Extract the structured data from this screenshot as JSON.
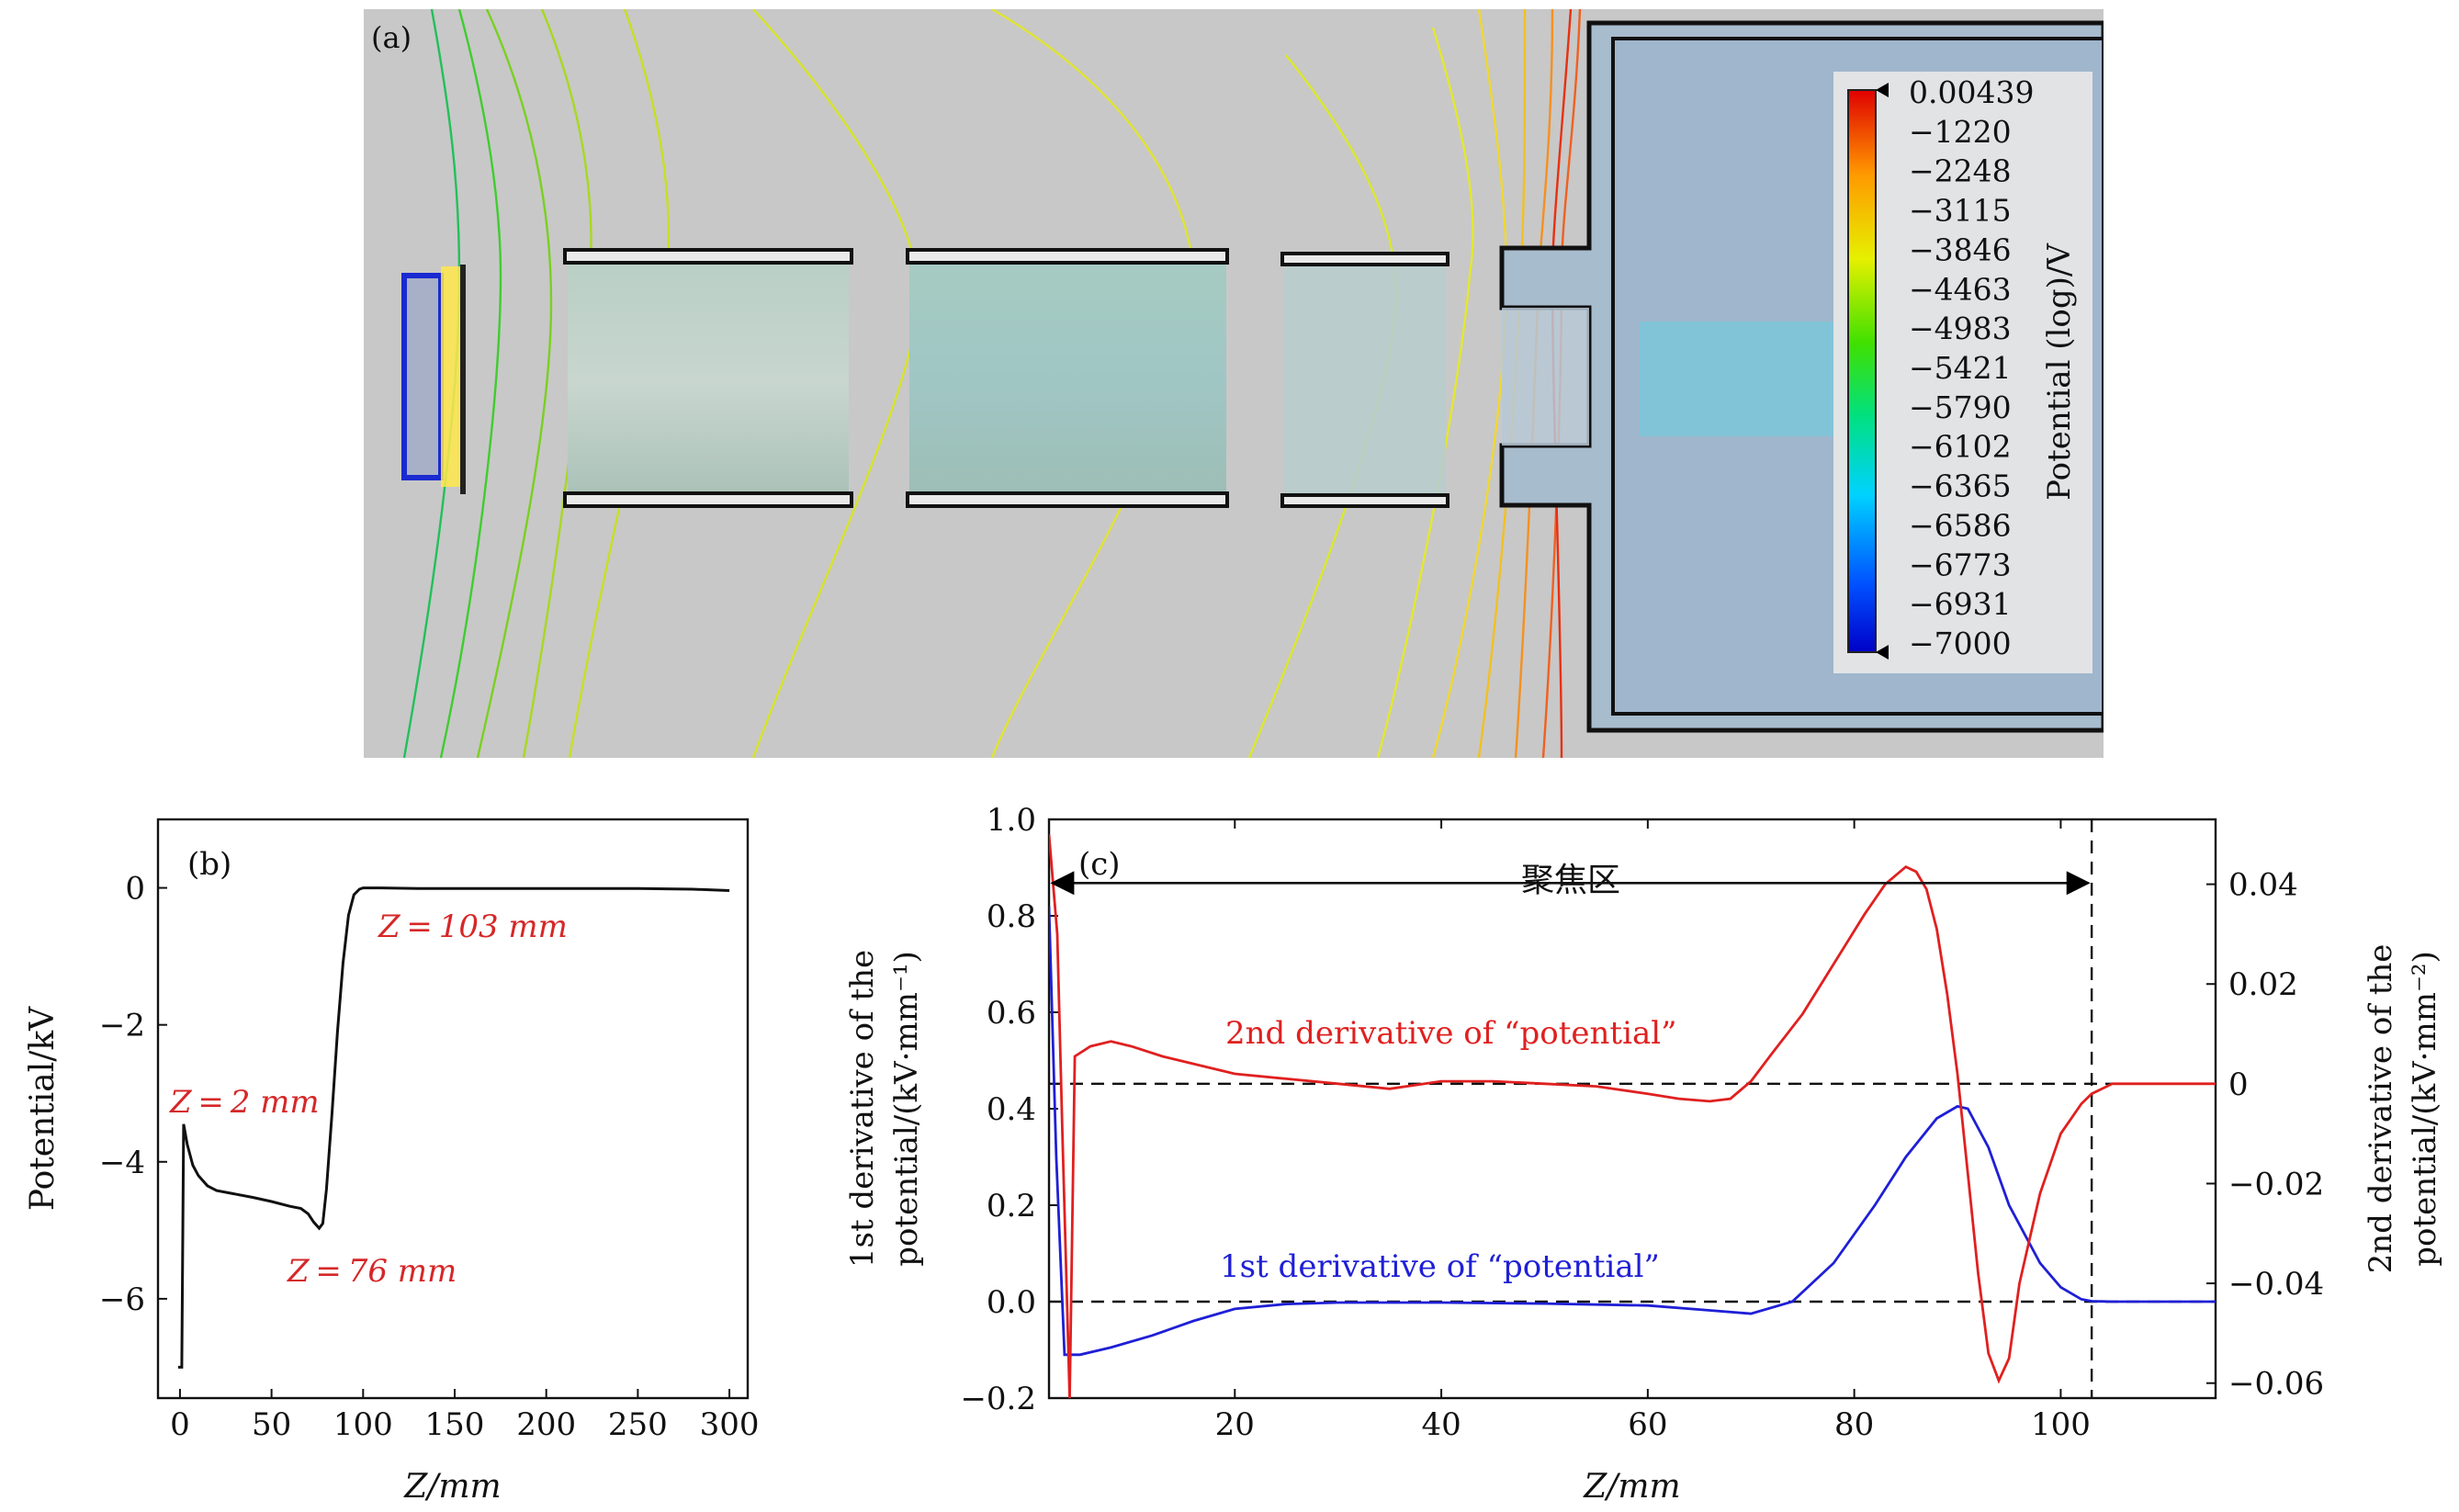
{
  "panel_a": {
    "label": "(a)",
    "colorbar_title": "Potential (log)/V",
    "colorbar_ticks": [
      "0.00439",
      "−1220",
      "−2248",
      "−3115",
      "−3846",
      "−4463",
      "−4983",
      "−5421",
      "−5790",
      "−6102",
      "−6365",
      "−6586",
      "−6773",
      "−6931",
      "−7000"
    ],
    "colors": {
      "background": "#c8c8c8",
      "collector": "#9db4c8",
      "electrode_fill": "#aec8bf"
    }
  },
  "panel_b": {
    "label": "(b)",
    "xlabel": "Z/mm",
    "ylabel": "Potential/kV",
    "annotations": [
      "Z = 103 mm",
      "Z = 2 mm",
      "Z = 76 mm"
    ],
    "annotation_color": "#d62728"
  },
  "panel_c": {
    "label": "(c)",
    "xlabel": "Z/mm",
    "ylabel_left_line1": "1st derivative of the",
    "ylabel_left_line2": "potential/(kV·mm⁻¹)",
    "ylabel_right_line1": "2nd derivative of the",
    "ylabel_right_line2": "potential/(kV·mm⁻²)",
    "region_label": "聚焦区",
    "label_2nd": "2nd derivative of “potential”",
    "label_1st": "1st derivative of “potential”",
    "colors": {
      "first": "#1f1fd6",
      "second": "#e02020"
    }
  },
  "chart_data": [
    {
      "type": "line",
      "panel": "b",
      "xlabel": "Z/mm",
      "ylabel": "Potential/kV",
      "xlim": [
        -12,
        310
      ],
      "ylim": [
        -7.45,
        1.0
      ],
      "xticks": [
        0,
        50,
        100,
        150,
        200,
        250,
        300
      ],
      "yticks": [
        0,
        -2,
        -4,
        -6
      ],
      "series": [
        {
          "color": "#000000",
          "x": [
            -1,
            1,
            2,
            4,
            7,
            10,
            15,
            20,
            30,
            40,
            50,
            60,
            66,
            70,
            73,
            76,
            78,
            80,
            83,
            86,
            89,
            92,
            95,
            98,
            100,
            103,
            110,
            130,
            150,
            200,
            250,
            280,
            300
          ],
          "y": [
            -7.0,
            -7.0,
            -3.45,
            -3.75,
            -4.05,
            -4.2,
            -4.35,
            -4.42,
            -4.47,
            -4.52,
            -4.58,
            -4.65,
            -4.68,
            -4.76,
            -4.88,
            -4.97,
            -4.9,
            -4.4,
            -3.3,
            -2.1,
            -1.1,
            -0.4,
            -0.1,
            -0.02,
            0.0,
            0.0,
            0.0,
            -0.01,
            -0.01,
            -0.01,
            -0.01,
            -0.02,
            -0.04
          ]
        }
      ]
    },
    {
      "type": "line",
      "panel": "c",
      "xlabel": "Z/mm",
      "xlim": [
        2,
        115
      ],
      "ylim_left": [
        -0.2,
        1.0
      ],
      "ylim_right": [
        -0.063,
        0.053
      ],
      "xticks": [
        20,
        40,
        60,
        80,
        100
      ],
      "yticks_left": [
        -0.2,
        0.0,
        0.2,
        0.4,
        0.6,
        0.8,
        1.0
      ],
      "yticks_right": [
        -0.06,
        -0.04,
        -0.02,
        0,
        0.02,
        0.04
      ],
      "hlines": [
        {
          "axis": "left",
          "y": 0.0
        },
        {
          "axis": "right",
          "y": 0.0
        }
      ],
      "vline_x": 103,
      "region": [
        2,
        103
      ],
      "series": [
        {
          "name": "1st derivative of “potential”",
          "axis": "left",
          "color": "#1f1fd6",
          "x": [
            2,
            2.7,
            3.5,
            5,
            8,
            12,
            16,
            20,
            25,
            30,
            40,
            50,
            60,
            66,
            70,
            74,
            78,
            82,
            85,
            88,
            90,
            91,
            93,
            95,
            98,
            100,
            102,
            103,
            105,
            110,
            115
          ],
          "y": [
            0.82,
            0.3,
            -0.11,
            -0.11,
            -0.095,
            -0.07,
            -0.04,
            -0.015,
            -0.005,
            -0.002,
            -0.002,
            -0.004,
            -0.008,
            -0.018,
            -0.025,
            0.0,
            0.08,
            0.2,
            0.3,
            0.38,
            0.405,
            0.4,
            0.32,
            0.2,
            0.08,
            0.03,
            0.005,
            0.001,
            0.0,
            0.0,
            0.0
          ]
        },
        {
          "name": "2nd derivative of “potential”",
          "axis": "right",
          "color": "#e02020",
          "x": [
            2,
            2.8,
            3.3,
            4,
            4.5,
            6,
            8,
            10,
            13,
            16,
            20,
            25,
            30,
            35,
            40,
            45,
            50,
            55,
            60,
            63,
            66,
            68,
            70,
            72,
            75,
            78,
            81,
            83,
            85,
            86,
            87,
            88,
            89,
            90,
            91,
            92,
            93,
            94,
            95,
            96,
            98,
            100,
            102,
            103,
            105,
            108,
            110,
            115
          ],
          "y": [
            0.05,
            0.03,
            -0.01,
            -0.063,
            0.0055,
            0.0075,
            0.0085,
            0.0075,
            0.0055,
            0.004,
            0.002,
            0.001,
            0.0,
            -0.001,
            0.0005,
            0.0005,
            0.0,
            -0.0005,
            -0.002,
            -0.003,
            -0.0035,
            -0.003,
            0.0005,
            0.006,
            0.014,
            0.024,
            0.034,
            0.04,
            0.0435,
            0.0425,
            0.039,
            0.031,
            0.018,
            0.002,
            -0.018,
            -0.038,
            -0.054,
            -0.0595,
            -0.055,
            -0.04,
            -0.022,
            -0.01,
            -0.004,
            -0.002,
            0.0,
            0.0,
            0.0,
            0.0
          ]
        }
      ]
    }
  ]
}
